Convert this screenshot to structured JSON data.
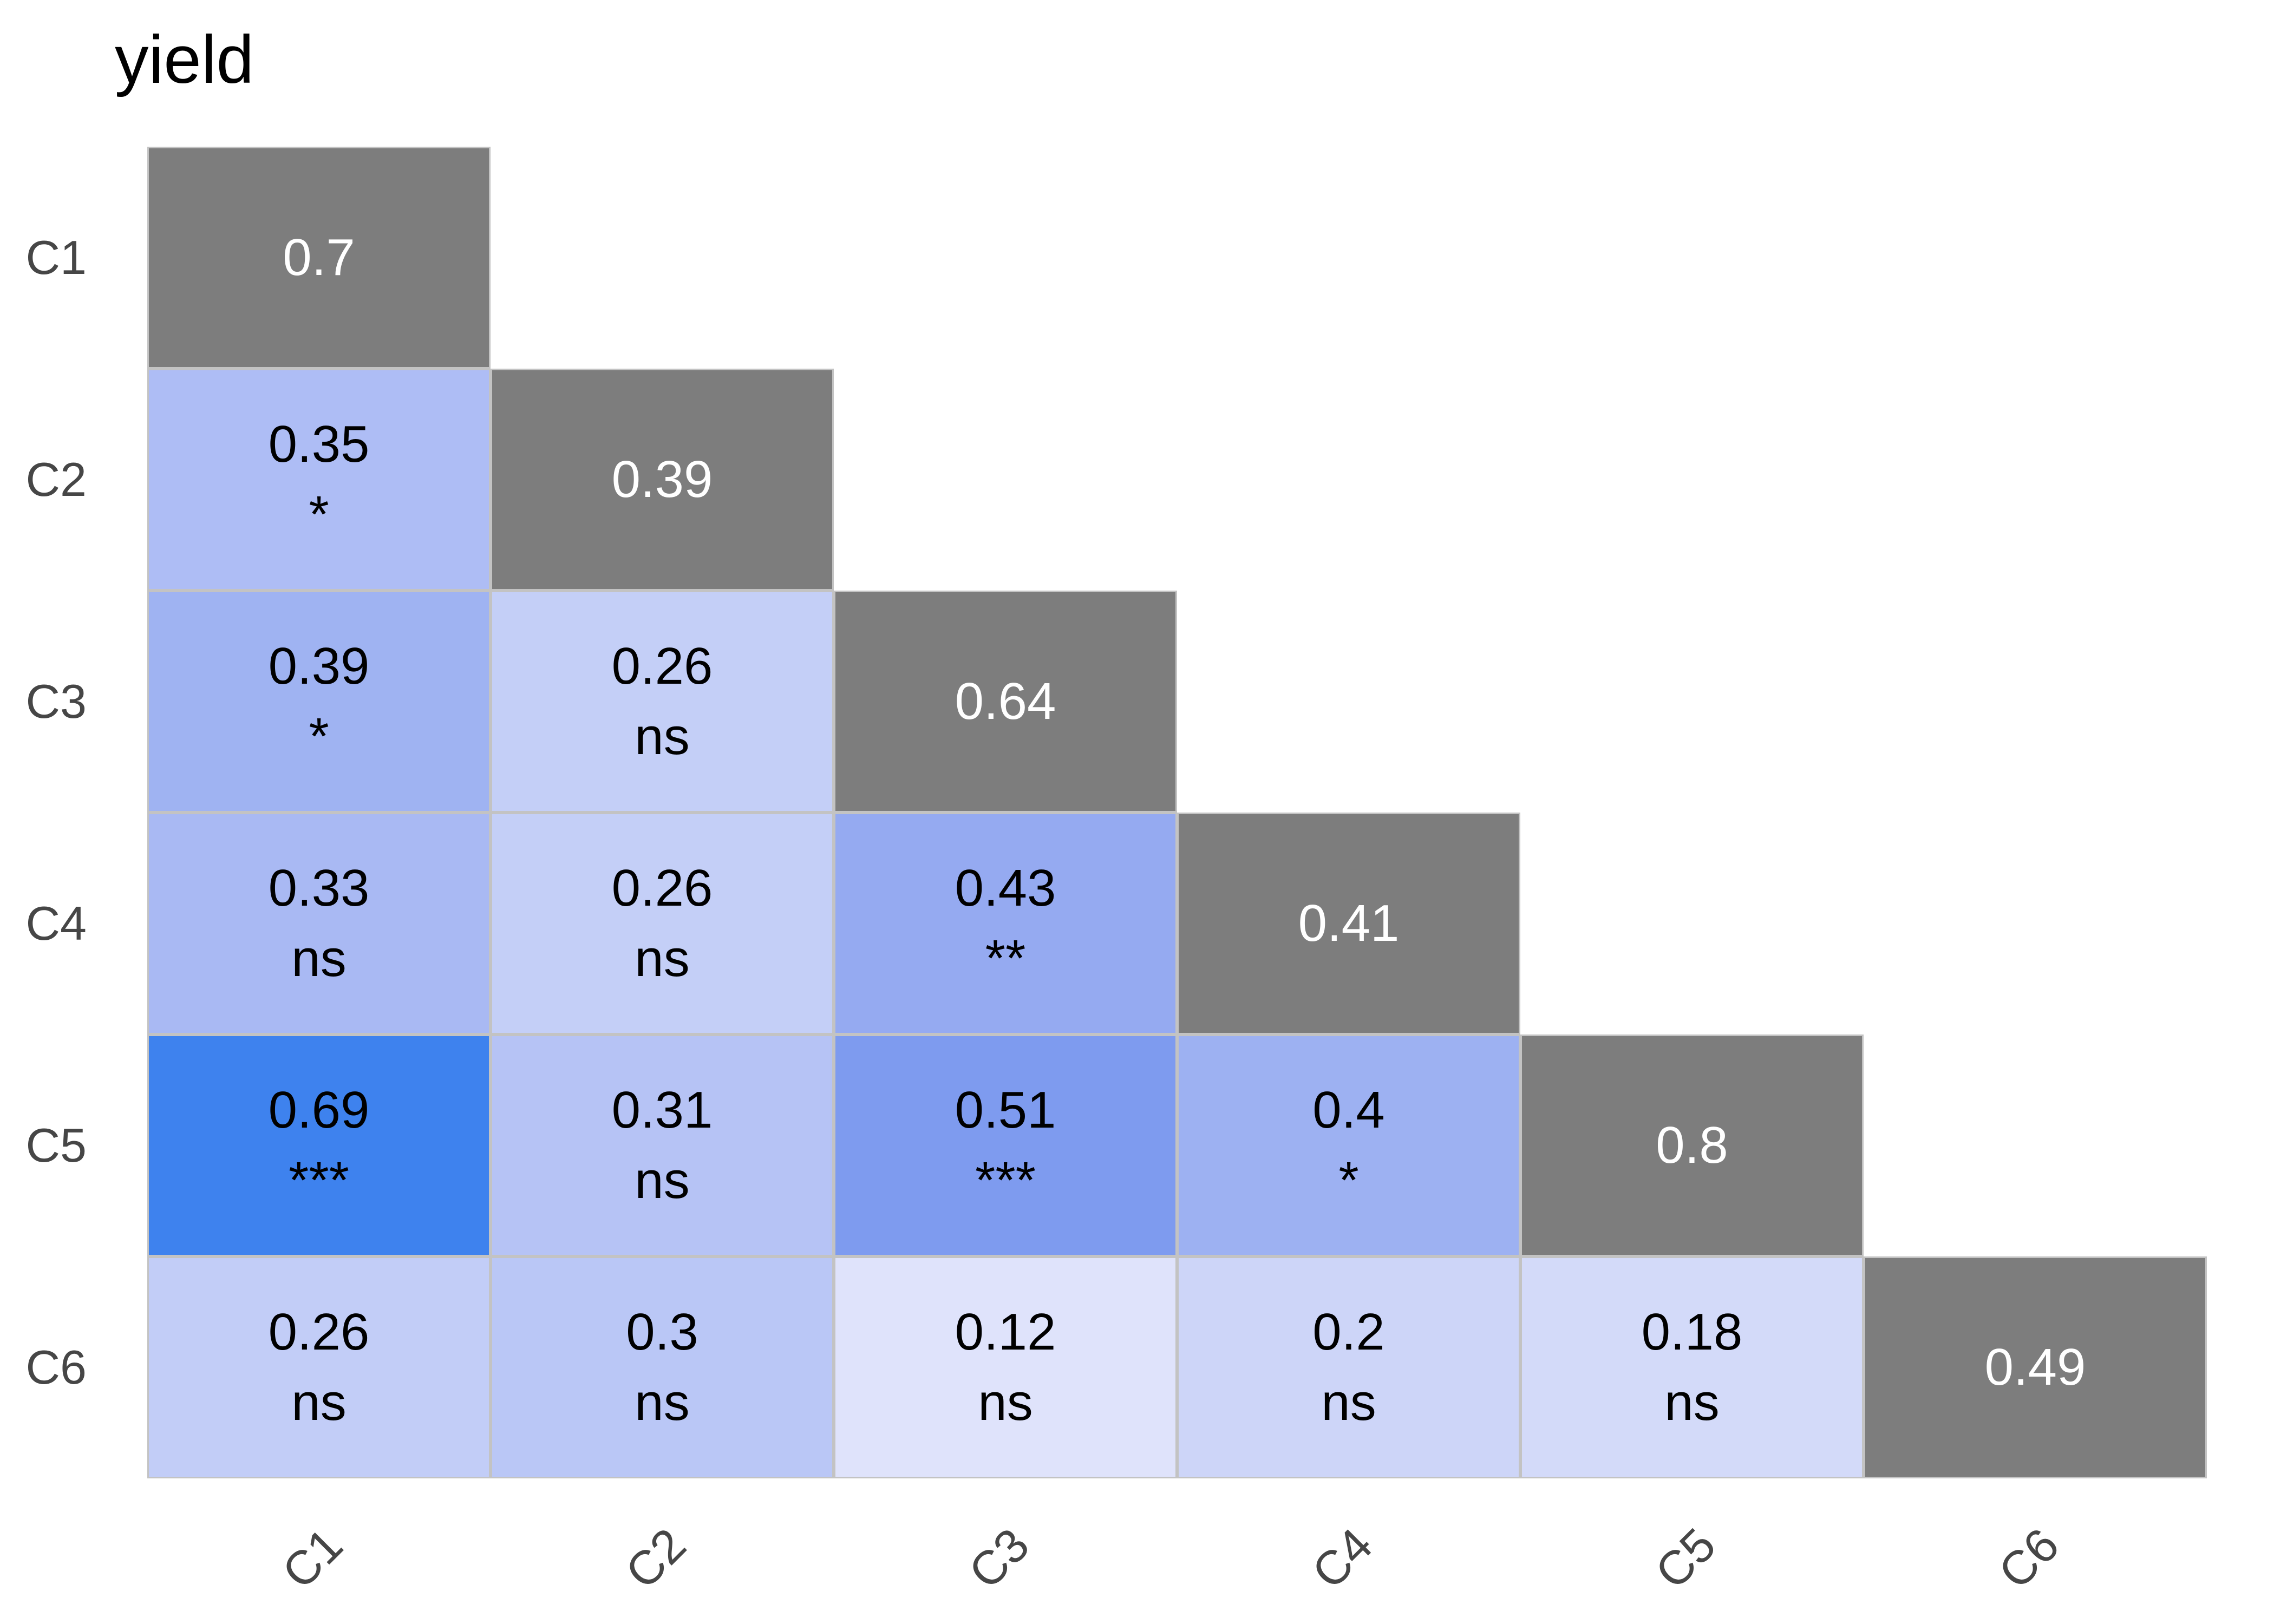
{
  "title": "yield",
  "colors": {
    "background": "#ffffff",
    "diagonal_fill": "#7d7d7d",
    "cell_border": "#c3c3c3",
    "axis_text": "#464646",
    "diagonal_text": "#ffffff",
    "cell_text": "#000000",
    "strong_correlation_blue": "#3e82ee",
    "weak_correlation_blue": "#dfe3fb"
  },
  "axes": {
    "row_labels": [
      "C1",
      "C2",
      "C3",
      "C4",
      "C5",
      "C6"
    ],
    "col_labels": [
      "C1",
      "C2",
      "C3",
      "C4",
      "C5",
      "C6"
    ]
  },
  "chart_data": {
    "type": "heatmap",
    "subtype": "correlation-matrix-lower-triangle",
    "title": "yield",
    "variables": [
      "C1",
      "C2",
      "C3",
      "C4",
      "C5",
      "C6"
    ],
    "legend_position": "none",
    "grid": "off",
    "cells": [
      {
        "row": "C1",
        "col": "C1",
        "value": "0.7",
        "sig": null,
        "diagonal": true,
        "color": "#7d7d7d"
      },
      {
        "row": "C2",
        "col": "C1",
        "value": "0.35",
        "sig": "*",
        "diagonal": false,
        "color": "#aebdf5"
      },
      {
        "row": "C2",
        "col": "C2",
        "value": "0.39",
        "sig": null,
        "diagonal": true,
        "color": "#7d7d7d"
      },
      {
        "row": "C3",
        "col": "C1",
        "value": "0.39",
        "sig": "*",
        "diagonal": false,
        "color": "#9fb3f2"
      },
      {
        "row": "C3",
        "col": "C2",
        "value": "0.26",
        "sig": "ns",
        "diagonal": false,
        "color": "#c4cff7"
      },
      {
        "row": "C3",
        "col": "C3",
        "value": "0.64",
        "sig": null,
        "diagonal": true,
        "color": "#7d7d7d"
      },
      {
        "row": "C4",
        "col": "C1",
        "value": "0.33",
        "sig": "ns",
        "diagonal": false,
        "color": "#a9b9f3"
      },
      {
        "row": "C4",
        "col": "C2",
        "value": "0.26",
        "sig": "ns",
        "diagonal": false,
        "color": "#c4cff7"
      },
      {
        "row": "C4",
        "col": "C3",
        "value": "0.43",
        "sig": "**",
        "diagonal": false,
        "color": "#95aaf1"
      },
      {
        "row": "C4",
        "col": "C4",
        "value": "0.41",
        "sig": null,
        "diagonal": true,
        "color": "#7d7d7d"
      },
      {
        "row": "C5",
        "col": "C1",
        "value": "0.69",
        "sig": "***",
        "diagonal": false,
        "color": "#3e82ee"
      },
      {
        "row": "C5",
        "col": "C2",
        "value": "0.31",
        "sig": "ns",
        "diagonal": false,
        "color": "#b6c3f5"
      },
      {
        "row": "C5",
        "col": "C3",
        "value": "0.51",
        "sig": "***",
        "diagonal": false,
        "color": "#7e9bef"
      },
      {
        "row": "C5",
        "col": "C4",
        "value": "0.4",
        "sig": "*",
        "diagonal": false,
        "color": "#9db1f2"
      },
      {
        "row": "C5",
        "col": "C5",
        "value": "0.8",
        "sig": null,
        "diagonal": true,
        "color": "#7d7d7d"
      },
      {
        "row": "C6",
        "col": "C1",
        "value": "0.26",
        "sig": "ns",
        "diagonal": false,
        "color": "#c2cdf7"
      },
      {
        "row": "C6",
        "col": "C2",
        "value": "0.3",
        "sig": "ns",
        "diagonal": false,
        "color": "#bac7f6"
      },
      {
        "row": "C6",
        "col": "C3",
        "value": "0.12",
        "sig": "ns",
        "diagonal": false,
        "color": "#dfe3fb"
      },
      {
        "row": "C6",
        "col": "C4",
        "value": "0.2",
        "sig": "ns",
        "diagonal": false,
        "color": "#cdd5f8"
      },
      {
        "row": "C6",
        "col": "C5",
        "value": "0.18",
        "sig": "ns",
        "diagonal": false,
        "color": "#d3daf9"
      },
      {
        "row": "C6",
        "col": "C6",
        "value": "0.49",
        "sig": null,
        "diagonal": true,
        "color": "#7d7d7d"
      }
    ]
  }
}
